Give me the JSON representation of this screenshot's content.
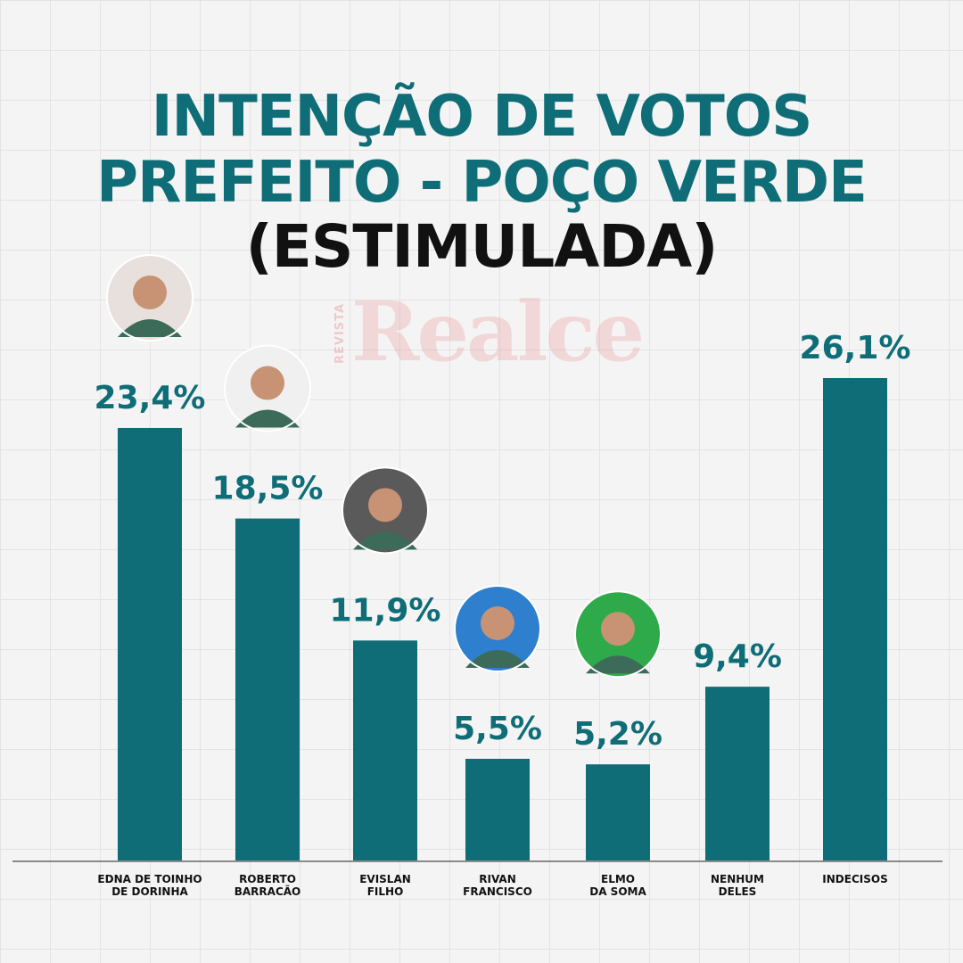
{
  "title_lines": [
    "INTENÇÃO DE VOTOS",
    "PREFEITO - POÇO VERDE",
    "(ESTIMULADA)"
  ],
  "watermark": {
    "small": "REVISTA",
    "big": "Realce"
  },
  "colors": {
    "title": "#0e6d77",
    "bar": "#0e6d77",
    "value_label": "#0e6d77",
    "heading_dark": "#111111"
  },
  "chart_data": {
    "type": "bar",
    "title": "INTENÇÃO DE VOTOS PREFEITO - POÇO VERDE (ESTIMULADA)",
    "categories": [
      [
        "EDNA DE TOINHO",
        "DE DORINHA"
      ],
      [
        "ROBERTO",
        "BARRACÃO"
      ],
      [
        "EVISLAN",
        "FILHO"
      ],
      [
        "RIVAN",
        "FRANCISCO"
      ],
      [
        "ELMO",
        "DA SOMA"
      ],
      [
        "NENHUM",
        "DELES"
      ],
      [
        "INDECISOS"
      ]
    ],
    "values": [
      23.4,
      18.5,
      11.9,
      5.5,
      5.2,
      9.4,
      26.1
    ],
    "data_labels": [
      "23,4%",
      "18,5%",
      "11,9%",
      "5,5%",
      "5,2%",
      "9,4%",
      "26,1%"
    ],
    "photo_icons": [
      "candidate-photo",
      "candidate-photo",
      "candidate-photo",
      "candidate-photo",
      "candidate-photo",
      null,
      null
    ],
    "photo_backgrounds": [
      "#e8e0dc",
      "#f0f0f0",
      "#5a5a5a",
      "#2f7fcf",
      "#2faa4a",
      null,
      null
    ],
    "xlabel": "",
    "ylabel": "",
    "ylim": [
      0,
      26.1
    ],
    "grid": true,
    "legend": "none"
  }
}
